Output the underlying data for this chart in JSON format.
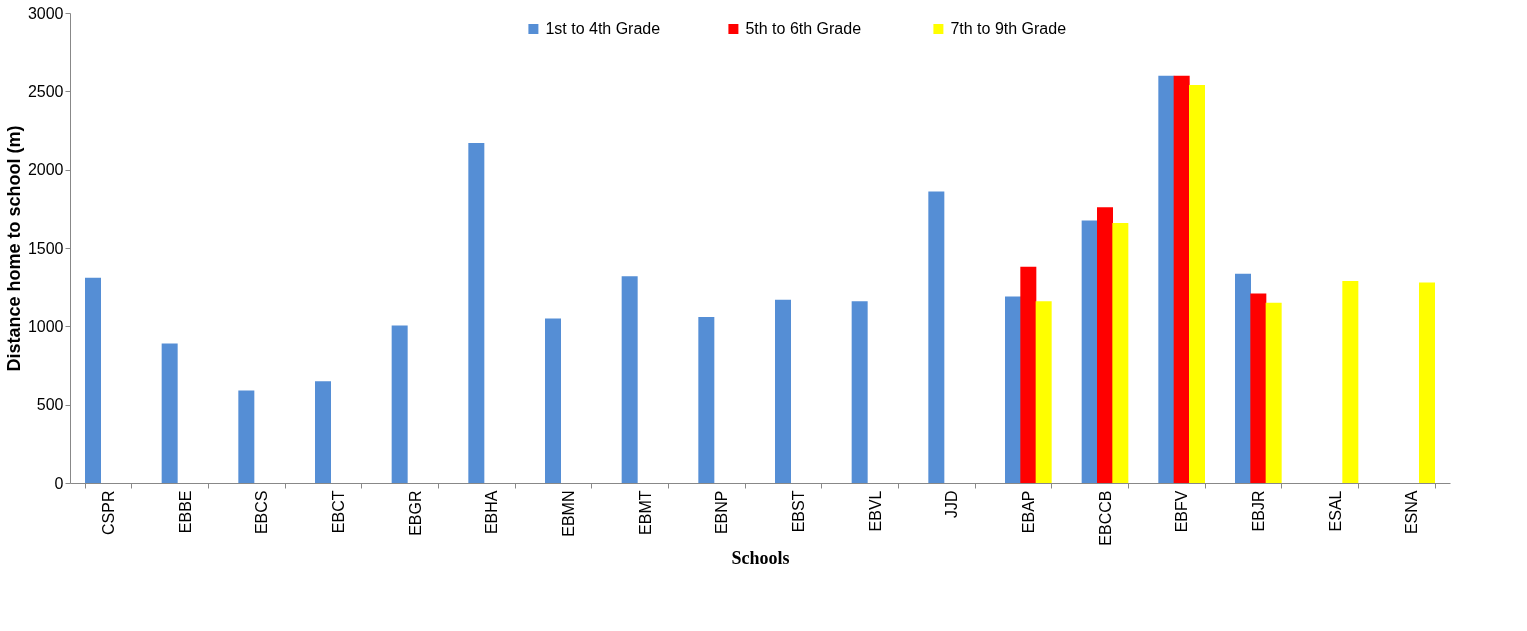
{
  "chart_data": {
    "type": "bar",
    "xlabel": "Schools",
    "ylabel": "Distance home to school (m)",
    "categories": [
      "CSPR",
      "EBBE",
      "EBCS",
      "EBCT",
      "EBGR",
      "EBHA",
      "EBMN",
      "EBMT",
      "EBNP",
      "EBST",
      "EBVL",
      "JJD",
      "EBAP",
      "EBCCB",
      "EBFV",
      "EBJR",
      "ESAL",
      "ESNA"
    ],
    "series": [
      {
        "name": "1st to 4th  Grade",
        "color": "#558ed5",
        "values": [
          1310,
          890,
          590,
          650,
          1005,
          2170,
          1050,
          1320,
          1060,
          1170,
          1160,
          1860,
          1190,
          1675,
          2600,
          1335,
          null,
          null
        ]
      },
      {
        "name": "5th  to 6th  Grade",
        "color": "#ff0000",
        "values": [
          null,
          null,
          null,
          null,
          null,
          null,
          null,
          null,
          null,
          null,
          null,
          null,
          1380,
          1760,
          2600,
          1210,
          null,
          null
        ]
      },
      {
        "name": "7th  to 9th  Grade",
        "color": "#ffff00",
        "values": [
          null,
          null,
          null,
          null,
          null,
          null,
          null,
          null,
          null,
          null,
          null,
          null,
          1160,
          1660,
          2540,
          1150,
          1290,
          1280
        ]
      }
    ],
    "ylim": [
      0,
      3000
    ],
    "yticks": [
      0,
      500,
      1000,
      1500,
      2000,
      2500,
      3000
    ],
    "grid": false,
    "legend": "top"
  }
}
